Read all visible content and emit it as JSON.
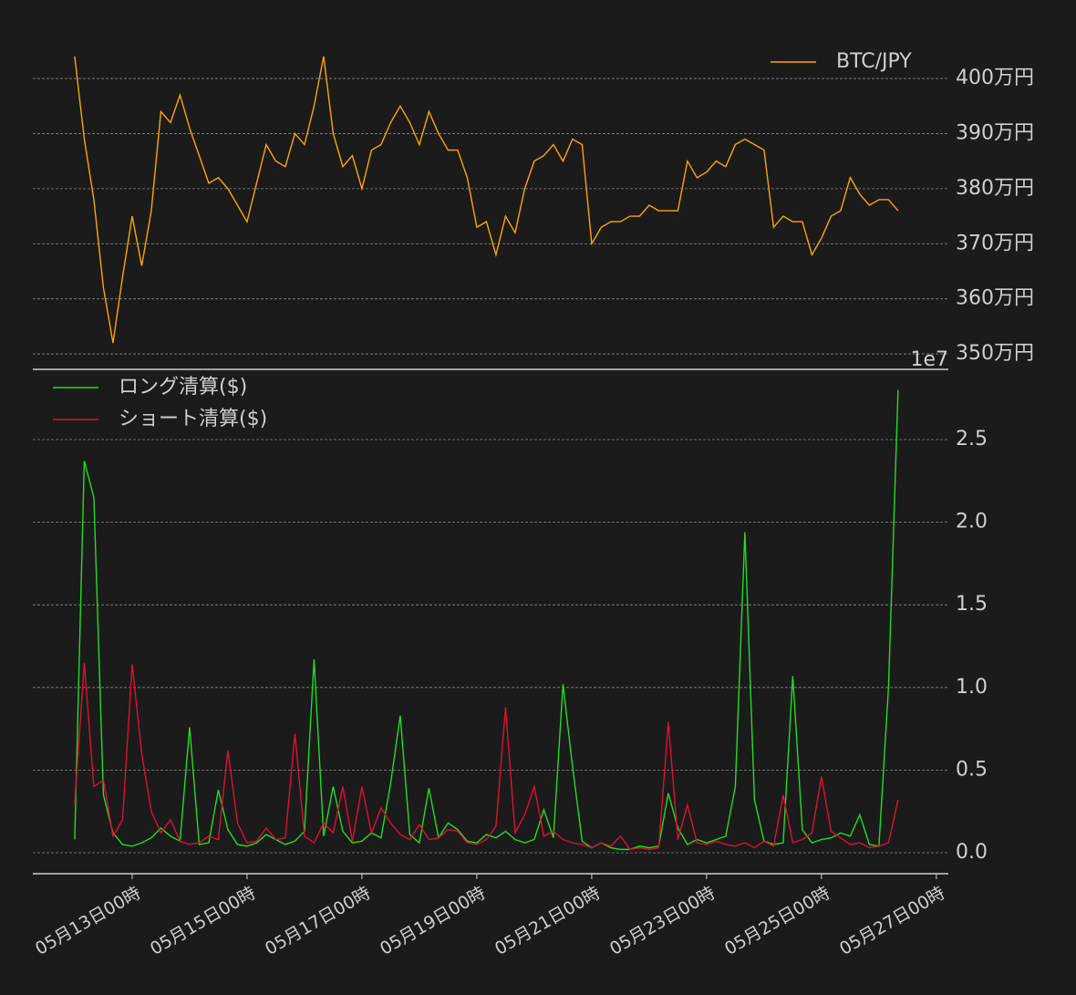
{
  "chart_data": [
    {
      "type": "line",
      "legend": "upper right",
      "grid": true,
      "xlim": [
        "05-11 06:30",
        "05-27 05:00"
      ],
      "ylim": [
        3472000,
        4063000
      ],
      "yticks": [
        {
          "value": 3500000,
          "label": "350万円"
        },
        {
          "value": 3600000,
          "label": "360万円"
        },
        {
          "value": 3700000,
          "label": "370万円"
        },
        {
          "value": 3800000,
          "label": "380万円"
        },
        {
          "value": 3900000,
          "label": "390万円"
        },
        {
          "value": 4000000,
          "label": "400万円"
        }
      ],
      "x": [
        "05-12 00:00",
        "05-12 04:00",
        "05-12 08:00",
        "05-12 12:00",
        "05-12 16:00",
        "05-12 20:00",
        "05-13 00:00",
        "05-13 04:00",
        "05-13 08:00",
        "05-13 12:00",
        "05-13 16:00",
        "05-13 20:00",
        "05-14 00:00",
        "05-14 04:00",
        "05-14 08:00",
        "05-14 12:00",
        "05-14 16:00",
        "05-14 20:00",
        "05-15 00:00",
        "05-15 04:00",
        "05-15 08:00",
        "05-15 12:00",
        "05-15 16:00",
        "05-15 20:00",
        "05-16 00:00",
        "05-16 04:00",
        "05-16 08:00",
        "05-16 12:00",
        "05-16 16:00",
        "05-16 20:00",
        "05-17 00:00",
        "05-17 04:00",
        "05-17 08:00",
        "05-17 12:00",
        "05-17 16:00",
        "05-17 20:00",
        "05-18 00:00",
        "05-18 04:00",
        "05-18 08:00",
        "05-18 12:00",
        "05-18 16:00",
        "05-18 20:00",
        "05-19 00:00",
        "05-19 04:00",
        "05-19 08:00",
        "05-19 12:00",
        "05-19 16:00",
        "05-19 20:00",
        "05-20 00:00",
        "05-20 04:00",
        "05-20 08:00",
        "05-20 12:00",
        "05-20 16:00",
        "05-20 20:00",
        "05-21 00:00",
        "05-21 04:00",
        "05-21 08:00",
        "05-21 12:00",
        "05-21 16:00",
        "05-21 20:00",
        "05-22 00:00",
        "05-22 04:00",
        "05-22 08:00",
        "05-22 12:00",
        "05-22 16:00",
        "05-22 20:00",
        "05-23 00:00",
        "05-23 04:00",
        "05-23 08:00",
        "05-23 12:00",
        "05-23 16:00",
        "05-23 20:00",
        "05-24 00:00",
        "05-24 04:00",
        "05-24 08:00",
        "05-24 12:00",
        "05-24 16:00",
        "05-24 20:00",
        "05-25 00:00",
        "05-25 04:00",
        "05-25 08:00",
        "05-25 12:00",
        "05-25 16:00",
        "05-25 20:00",
        "05-26 00:00",
        "05-26 04:00",
        "05-26 08:00"
      ],
      "series": [
        {
          "name": "BTC/JPY",
          "color": "#ffa500",
          "values": [
            4040000,
            3890000,
            3780000,
            3620000,
            3520000,
            3640000,
            3750000,
            3660000,
            3760000,
            3940000,
            3920000,
            3970000,
            3910000,
            3860000,
            3810000,
            3820000,
            3800000,
            3770000,
            3740000,
            3810000,
            3880000,
            3850000,
            3840000,
            3900000,
            3880000,
            3950000,
            4040000,
            3900000,
            3840000,
            3860000,
            3800000,
            3870000,
            3880000,
            3920000,
            3950000,
            3920000,
            3880000,
            3940000,
            3900000,
            3870000,
            3870000,
            3820000,
            3730000,
            3740000,
            3680000,
            3750000,
            3720000,
            3800000,
            3850000,
            3860000,
            3880000,
            3850000,
            3890000,
            3880000,
            3700000,
            3730000,
            3740000,
            3740000,
            3750000,
            3750000,
            3770000,
            3760000,
            3760000,
            3760000,
            3850000,
            3820000,
            3830000,
            3850000,
            3840000,
            3880000,
            3890000,
            3880000,
            3870000,
            3730000,
            3750000,
            3740000,
            3740000,
            3680000,
            3710000,
            3750000,
            3760000,
            3820000,
            3790000,
            3770000,
            3780000,
            3780000,
            3760000
          ]
        }
      ]
    },
    {
      "type": "line",
      "legend": "upper left",
      "grid": true,
      "offset_label": "1e7",
      "xlim": [
        "05-11 06:30",
        "05-27 05:00"
      ],
      "ylim": [
        -1269000,
        29250000
      ],
      "yticks": [
        {
          "value": 0,
          "label": "0.0"
        },
        {
          "value": 5000000,
          "label": "0.5"
        },
        {
          "value": 10000000,
          "label": "1.0"
        },
        {
          "value": 15000000,
          "label": "1.5"
        },
        {
          "value": 20000000,
          "label": "2.0"
        },
        {
          "value": 25000000,
          "label": "2.5"
        }
      ],
      "xticks": [
        {
          "value": "05-13 00:00",
          "label": "05月13日00時"
        },
        {
          "value": "05-15 00:00",
          "label": "05月15日00時"
        },
        {
          "value": "05-17 00:00",
          "label": "05月17日00時"
        },
        {
          "value": "05-19 00:00",
          "label": "05月19日00時"
        },
        {
          "value": "05-21 00:00",
          "label": "05月21日00時"
        },
        {
          "value": "05-23 00:00",
          "label": "05月23日00時"
        },
        {
          "value": "05-25 00:00",
          "label": "05月25日00時"
        },
        {
          "value": "05-27 00:00",
          "label": "05月27日00時"
        }
      ],
      "x": [
        "05-12 00:00",
        "05-12 04:00",
        "05-12 08:00",
        "05-12 12:00",
        "05-12 16:00",
        "05-12 20:00",
        "05-13 00:00",
        "05-13 04:00",
        "05-13 08:00",
        "05-13 12:00",
        "05-13 16:00",
        "05-13 20:00",
        "05-14 00:00",
        "05-14 04:00",
        "05-14 08:00",
        "05-14 12:00",
        "05-14 16:00",
        "05-14 20:00",
        "05-15 00:00",
        "05-15 04:00",
        "05-15 08:00",
        "05-15 12:00",
        "05-15 16:00",
        "05-15 20:00",
        "05-16 00:00",
        "05-16 04:00",
        "05-16 08:00",
        "05-16 12:00",
        "05-16 16:00",
        "05-16 20:00",
        "05-17 00:00",
        "05-17 04:00",
        "05-17 08:00",
        "05-17 12:00",
        "05-17 16:00",
        "05-17 20:00",
        "05-18 00:00",
        "05-18 04:00",
        "05-18 08:00",
        "05-18 12:00",
        "05-18 16:00",
        "05-18 20:00",
        "05-19 00:00",
        "05-19 04:00",
        "05-19 08:00",
        "05-19 12:00",
        "05-19 16:00",
        "05-19 20:00",
        "05-20 00:00",
        "05-20 04:00",
        "05-20 08:00",
        "05-20 12:00",
        "05-20 16:00",
        "05-20 20:00",
        "05-21 00:00",
        "05-21 04:00",
        "05-21 08:00",
        "05-21 12:00",
        "05-21 16:00",
        "05-21 20:00",
        "05-22 00:00",
        "05-22 04:00",
        "05-22 08:00",
        "05-22 12:00",
        "05-22 16:00",
        "05-22 20:00",
        "05-23 00:00",
        "05-23 04:00",
        "05-23 08:00",
        "05-23 12:00",
        "05-23 16:00",
        "05-23 20:00",
        "05-24 00:00",
        "05-24 04:00",
        "05-24 08:00",
        "05-24 12:00",
        "05-24 16:00",
        "05-24 20:00",
        "05-25 00:00",
        "05-25 04:00",
        "05-25 08:00",
        "05-25 12:00",
        "05-25 16:00",
        "05-25 20:00",
        "05-26 00:00",
        "05-26 04:00",
        "05-26 08:00"
      ],
      "series": [
        {
          "name": "ロング清算($)",
          "color": "#22dd22",
          "values": [
            800000,
            23700000,
            21500000,
            3500000,
            1200000,
            500000,
            400000,
            600000,
            900000,
            1500000,
            1000000,
            700000,
            7600000,
            500000,
            600000,
            3800000,
            1400000,
            500000,
            400000,
            600000,
            1100000,
            800000,
            500000,
            700000,
            1300000,
            11700000,
            1000000,
            4000000,
            1300000,
            600000,
            700000,
            1200000,
            900000,
            4200000,
            8300000,
            1100000,
            600000,
            3900000,
            900000,
            1800000,
            1400000,
            700000,
            600000,
            1100000,
            900000,
            1300000,
            800000,
            600000,
            800000,
            2600000,
            900000,
            10200000,
            5200000,
            700000,
            300000,
            600000,
            300000,
            200000,
            200000,
            400000,
            300000,
            400000,
            3600000,
            1500000,
            500000,
            800000,
            600000,
            800000,
            1000000,
            4000000,
            19400000,
            3200000,
            700000,
            500000,
            600000,
            10700000,
            1400000,
            600000,
            800000,
            900000,
            1200000,
            1000000,
            2300000,
            500000,
            400000,
            10000000,
            28000000
          ]
        },
        {
          "name": "ショート清算($)",
          "color": "#dd1133",
          "values": [
            3000000,
            11500000,
            4000000,
            4400000,
            1000000,
            2000000,
            11400000,
            6000000,
            2500000,
            1200000,
            2000000,
            700000,
            500000,
            600000,
            1000000,
            800000,
            6200000,
            1800000,
            600000,
            700000,
            1500000,
            800000,
            900000,
            7200000,
            1000000,
            600000,
            1800000,
            1200000,
            4000000,
            700000,
            4000000,
            1200000,
            2700000,
            1800000,
            1100000,
            800000,
            1700000,
            800000,
            900000,
            1400000,
            1300000,
            600000,
            500000,
            800000,
            1600000,
            8800000,
            1200000,
            2300000,
            4000000,
            1000000,
            1300000,
            800000,
            600000,
            500000,
            300000,
            600000,
            400000,
            1000000,
            200000,
            300000,
            200000,
            300000,
            7900000,
            800000,
            2900000,
            600000,
            500000,
            700000,
            500000,
            400000,
            600000,
            300000,
            700000,
            400000,
            3500000,
            600000,
            800000,
            1200000,
            4600000,
            1300000,
            900000,
            500000,
            600000,
            300000,
            400000,
            600000,
            3200000
          ]
        }
      ]
    }
  ]
}
